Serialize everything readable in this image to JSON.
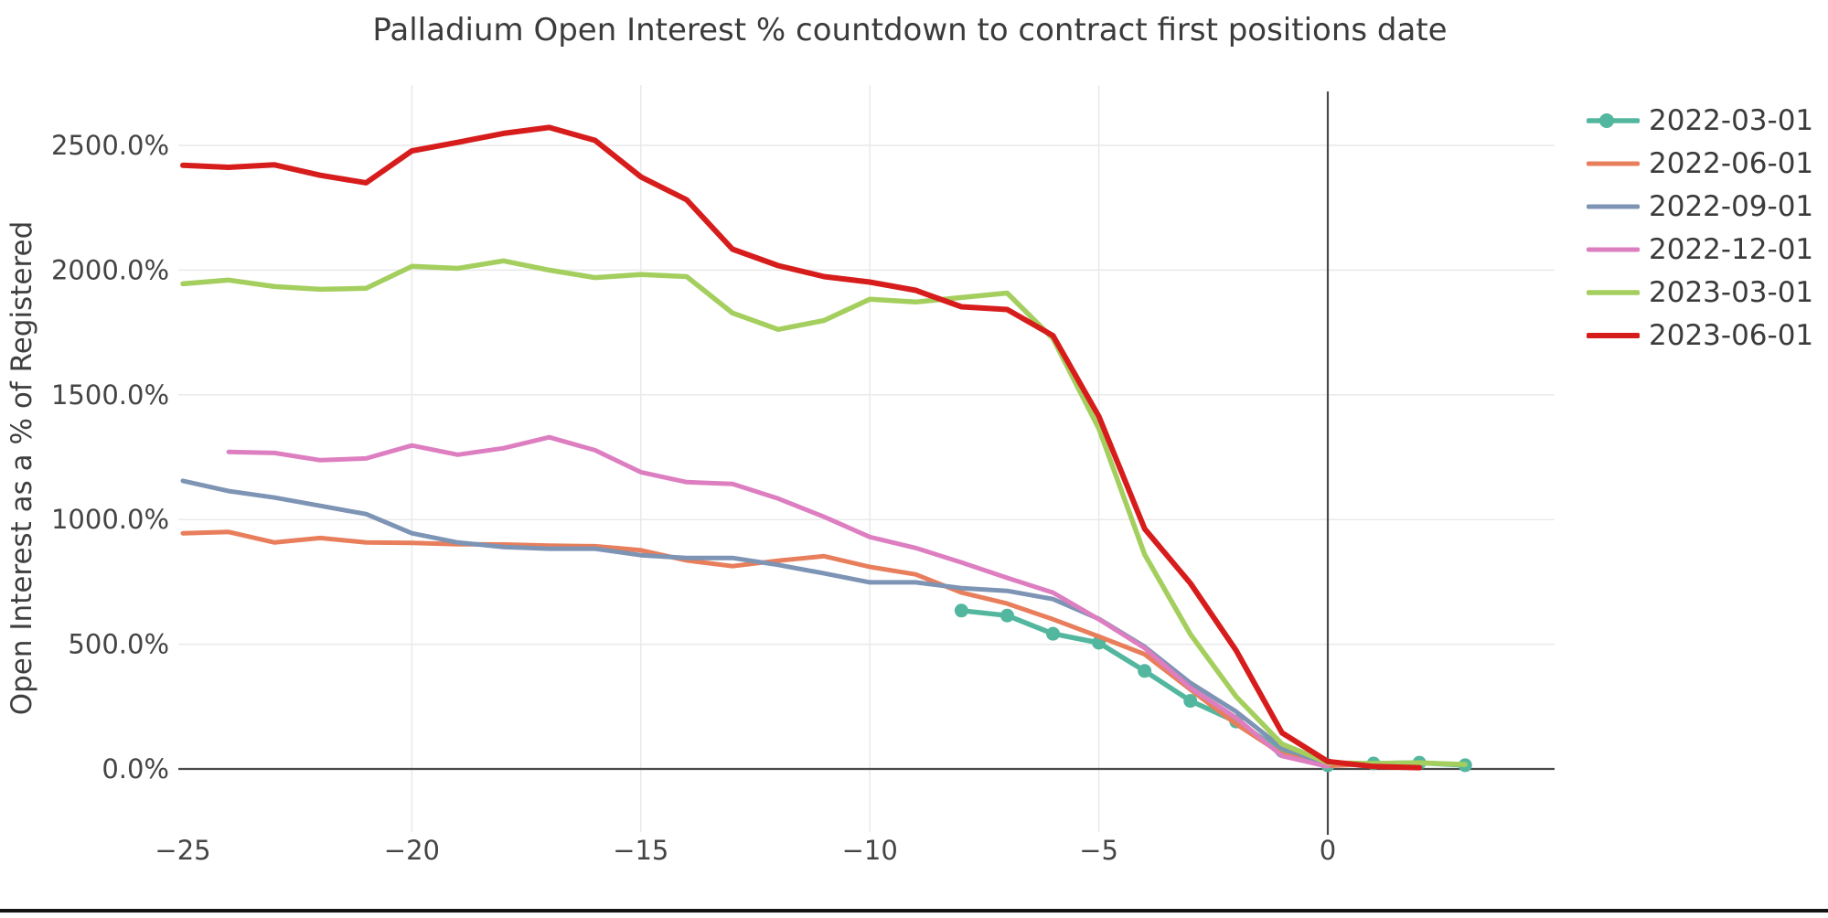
{
  "title": "Palladium Open Interest % countdown to contract first positions date",
  "chart_data": {
    "type": "line",
    "title": "Palladium Open Interest % countdown to contract first positions date",
    "xlabel": "",
    "ylabel": "Open Interest as a % of Registered",
    "grid": true,
    "legend_position": "top-right",
    "x_axis": {
      "range": [
        -25,
        4.95
      ],
      "ticks": [
        {
          "v": -25,
          "label": "−25"
        },
        {
          "v": -20,
          "label": "−20"
        },
        {
          "v": -15,
          "label": "−15"
        },
        {
          "v": -10,
          "label": "−10"
        },
        {
          "v": -5,
          "label": "−5"
        },
        {
          "v": 0,
          "label": "0"
        }
      ],
      "zero_line_at": 0
    },
    "y_axis": {
      "range": [
        -250,
        2740
      ],
      "ticks": [
        {
          "v": 0,
          "label": "0.0%"
        },
        {
          "v": 500,
          "label": "500.0%"
        },
        {
          "v": 1000,
          "label": "1000.0%"
        },
        {
          "v": 1500,
          "label": "1500.0%"
        },
        {
          "v": 2000,
          "label": "2000.0%"
        },
        {
          "v": 2500,
          "label": "2500.0%"
        }
      ]
    },
    "series": [
      {
        "name": "2022-03-01",
        "color": "#52b79e",
        "markers": true,
        "line_width": 5.5,
        "x_start": -8,
        "values": [
          635,
          615,
          542,
          506,
          393,
          273,
          190,
          72,
          15,
          22,
          25,
          15
        ]
      },
      {
        "name": "2022-06-01",
        "color": "#e87e5b",
        "markers": false,
        "line_width": 5,
        "x_start": -25,
        "values": [
          945,
          950,
          908,
          926,
          908,
          906,
          901,
          900,
          895,
          893,
          877,
          836,
          813,
          835,
          853,
          810,
          780,
          707,
          663,
          600,
          531,
          460,
          318,
          180,
          60,
          13,
          20
        ]
      },
      {
        "name": "2022-09-01",
        "color": "#7d94b5",
        "markers": false,
        "line_width": 5,
        "x_start": -25,
        "values": [
          1155,
          1114,
          1088,
          1055,
          1022,
          945,
          908,
          890,
          883,
          883,
          857,
          846,
          846,
          818,
          784,
          748,
          748,
          725,
          714,
          681,
          602,
          490,
          345,
          230,
          85,
          18
        ]
      },
      {
        "name": "2022-12-01",
        "color": "#dd7ec1",
        "markers": false,
        "line_width": 5,
        "x_start": -24,
        "values": [
          1271,
          1267,
          1238,
          1245,
          1297,
          1260,
          1286,
          1330,
          1278,
          1190,
          1150,
          1143,
          1084,
          1011,
          930,
          886,
          828,
          766,
          707,
          600,
          485,
          325,
          205,
          52,
          10
        ]
      },
      {
        "name": "2023-03-01",
        "color": "#a4cf5e",
        "markers": false,
        "line_width": 5.5,
        "x_start": -25,
        "values": [
          1945,
          1960,
          1934,
          1923,
          1927,
          2015,
          2007,
          2037,
          2000,
          1970,
          1982,
          1974,
          1828,
          1762,
          1798,
          1883,
          1872,
          1890,
          1908,
          1725,
          1365,
          860,
          540,
          290,
          100,
          25,
          22,
          25,
          18
        ]
      },
      {
        "name": "2023-06-01",
        "color": "#d71c1c",
        "markers": false,
        "line_width": 6,
        "x_start": -25,
        "values": [
          2420,
          2412,
          2422,
          2380,
          2350,
          2478,
          2512,
          2548,
          2572,
          2520,
          2374,
          2282,
          2084,
          2018,
          1974,
          1952,
          1919,
          1853,
          1842,
          1737,
          1414,
          963,
          744,
          475,
          145,
          30,
          10,
          5
        ]
      }
    ],
    "colors": {
      "grid": "#e9e9e9",
      "axis": "#4a4a4a",
      "background": "#ffffff"
    }
  }
}
